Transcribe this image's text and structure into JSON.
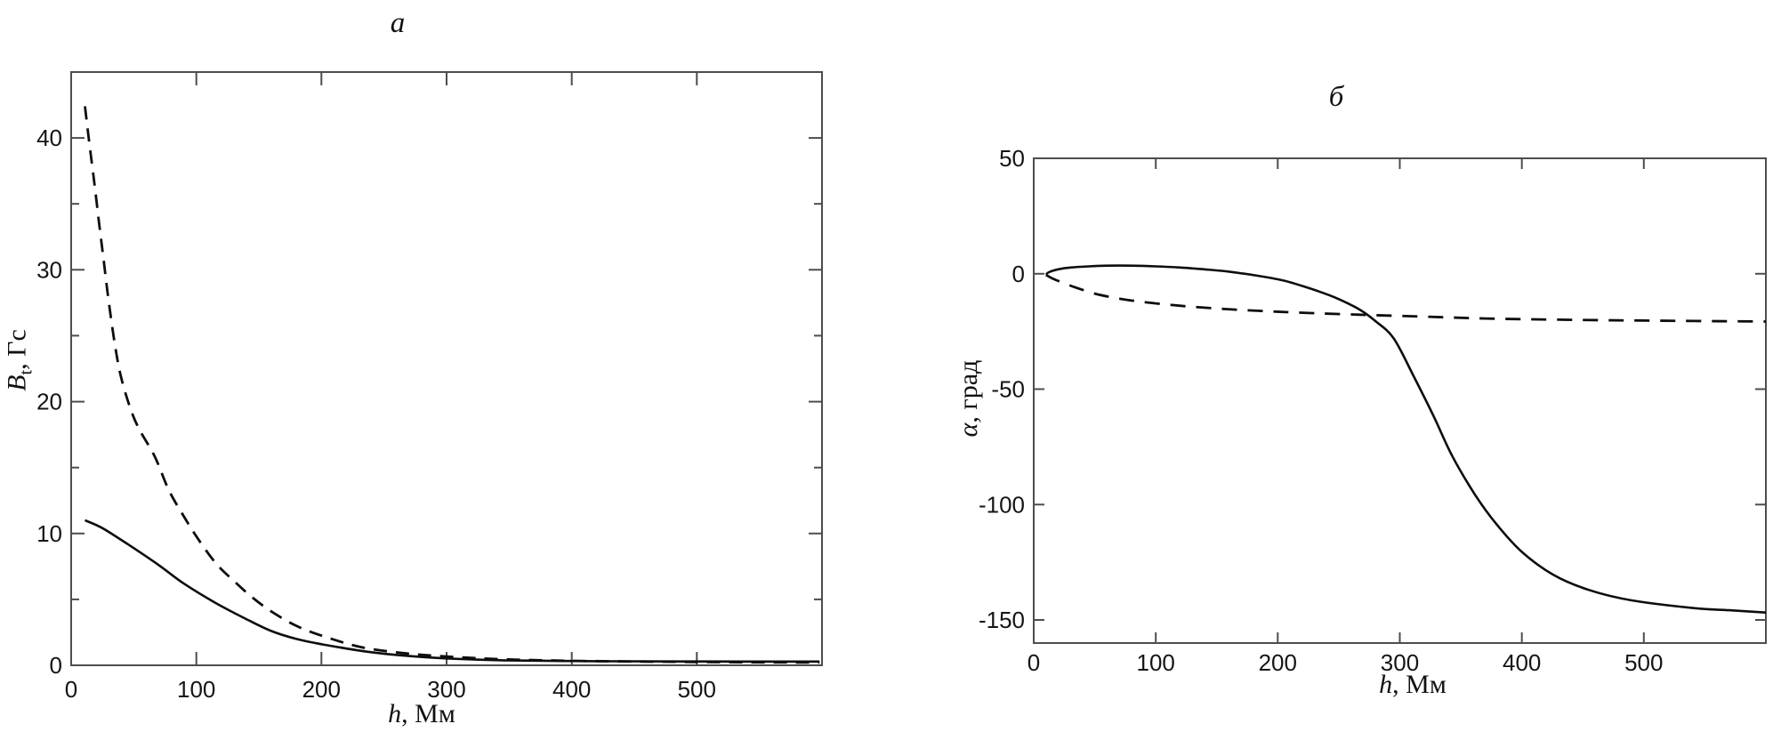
{
  "figure": {
    "background": "#ffffff",
    "curve_color": "#0d0d0d",
    "axis_color": "#4d4d4d",
    "text_color": "#151515"
  },
  "chart_data": [
    {
      "type": "line",
      "panel": "a",
      "title": "а",
      "xlabel": "h, Мм",
      "ylabel": "Bt, Гс",
      "xlabel_var": "h",
      "xlabel_unit": ", Мм",
      "ylabel_var": "B",
      "ylabel_sub": "t",
      "ylabel_unit": ", Гс",
      "xlim": [
        0,
        600
      ],
      "ylim": [
        0,
        45
      ],
      "xticks": [
        0,
        100,
        200,
        300,
        400,
        500
      ],
      "yticks": [
        0,
        10,
        20,
        30,
        40
      ],
      "yticks_minor": [
        5,
        15,
        25,
        35
      ],
      "grid": false,
      "legend": null,
      "series": [
        {
          "name": "solid",
          "style": "solid",
          "points": [
            [
              11,
              11.0
            ],
            [
              25,
              10.4
            ],
            [
              45,
              9.2
            ],
            [
              70,
              7.6
            ],
            [
              90,
              6.2
            ],
            [
              115,
              4.75
            ],
            [
              140,
              3.5
            ],
            [
              160,
              2.6
            ],
            [
              180,
              2.0
            ],
            [
              200,
              1.6
            ],
            [
              235,
              1.05
            ],
            [
              270,
              0.7
            ],
            [
              300,
              0.52
            ],
            [
              345,
              0.38
            ],
            [
              420,
              0.31
            ],
            [
              500,
              0.29
            ],
            [
              598,
              0.28
            ]
          ]
        },
        {
          "name": "dashed",
          "style": "dashed",
          "points": [
            [
              11,
              42.4
            ],
            [
              14,
              40.0
            ],
            [
              18,
              37.0
            ],
            [
              22,
              33.8
            ],
            [
              26,
              30.7
            ],
            [
              30,
              27.6
            ],
            [
              35,
              24.3
            ],
            [
              40,
              21.8
            ],
            [
              48,
              19.3
            ],
            [
              55,
              17.8
            ],
            [
              67,
              15.8
            ],
            [
              78,
              13.3
            ],
            [
              90,
              11.3
            ],
            [
              102,
              9.5
            ],
            [
              116,
              7.7
            ],
            [
              130,
              6.4
            ],
            [
              146,
              5.05
            ],
            [
              163,
              3.9
            ],
            [
              182,
              2.9
            ],
            [
              205,
              2.1
            ],
            [
              233,
              1.35
            ],
            [
              268,
              0.9
            ],
            [
              303,
              0.65
            ],
            [
              345,
              0.46
            ],
            [
              400,
              0.34
            ],
            [
              500,
              0.25
            ],
            [
              598,
              0.21
            ]
          ]
        }
      ]
    },
    {
      "type": "line",
      "panel": "б",
      "title": "б",
      "xlabel": "h, Мм",
      "ylabel": "α, град",
      "xlabel_var": "h",
      "xlabel_unit": ", Мм",
      "ylabel_var": "α",
      "ylabel_sub": "",
      "ylabel_unit": ", град",
      "xlim": [
        0,
        600
      ],
      "ylim": [
        -160,
        50
      ],
      "xticks": [
        0,
        100,
        200,
        300,
        400,
        500
      ],
      "yticks": [
        50,
        0,
        -50,
        -100,
        -150
      ],
      "yticks_minor": [],
      "grid": false,
      "legend": null,
      "series": [
        {
          "name": "solid",
          "style": "solid",
          "points": [
            [
              10,
              -0.3
            ],
            [
              13,
              0.8
            ],
            [
              20,
              1.9
            ],
            [
              30,
              2.7
            ],
            [
              45,
              3.2
            ],
            [
              60,
              3.5
            ],
            [
              80,
              3.5
            ],
            [
              100,
              3.2
            ],
            [
              120,
              2.7
            ],
            [
              140,
              1.9
            ],
            [
              160,
              0.9
            ],
            [
              185,
              -1.0
            ],
            [
              205,
              -3.0
            ],
            [
              220,
              -5.3
            ],
            [
              235,
              -7.9
            ],
            [
              250,
              -11.0
            ],
            [
              267,
              -15.5
            ],
            [
              280,
              -20.5
            ],
            [
              295,
              -28.0
            ],
            [
              311,
              -44.0
            ],
            [
              328,
              -62.0
            ],
            [
              343,
              -79.0
            ],
            [
              362,
              -96.0
            ],
            [
              380,
              -109.0
            ],
            [
              400,
              -120.5
            ],
            [
              426,
              -130.5
            ],
            [
              455,
              -137.0
            ],
            [
              490,
              -141.5
            ],
            [
              540,
              -144.8
            ],
            [
              570,
              -145.8
            ],
            [
              600,
              -146.8
            ]
          ]
        },
        {
          "name": "dashed",
          "style": "dashed",
          "points": [
            [
              10,
              -0.5
            ],
            [
              16,
              -2.2
            ],
            [
              24,
              -3.9
            ],
            [
              35,
              -6.1
            ],
            [
              50,
              -8.6
            ],
            [
              65,
              -10.3
            ],
            [
              80,
              -11.6
            ],
            [
              110,
              -13.4
            ],
            [
              145,
              -14.9
            ],
            [
              185,
              -16.1
            ],
            [
              220,
              -16.9
            ],
            [
              270,
              -17.8
            ],
            [
              320,
              -18.6
            ],
            [
              370,
              -19.4
            ],
            [
              430,
              -19.9
            ],
            [
              500,
              -20.3
            ],
            [
              600,
              -20.7
            ]
          ]
        }
      ]
    }
  ]
}
